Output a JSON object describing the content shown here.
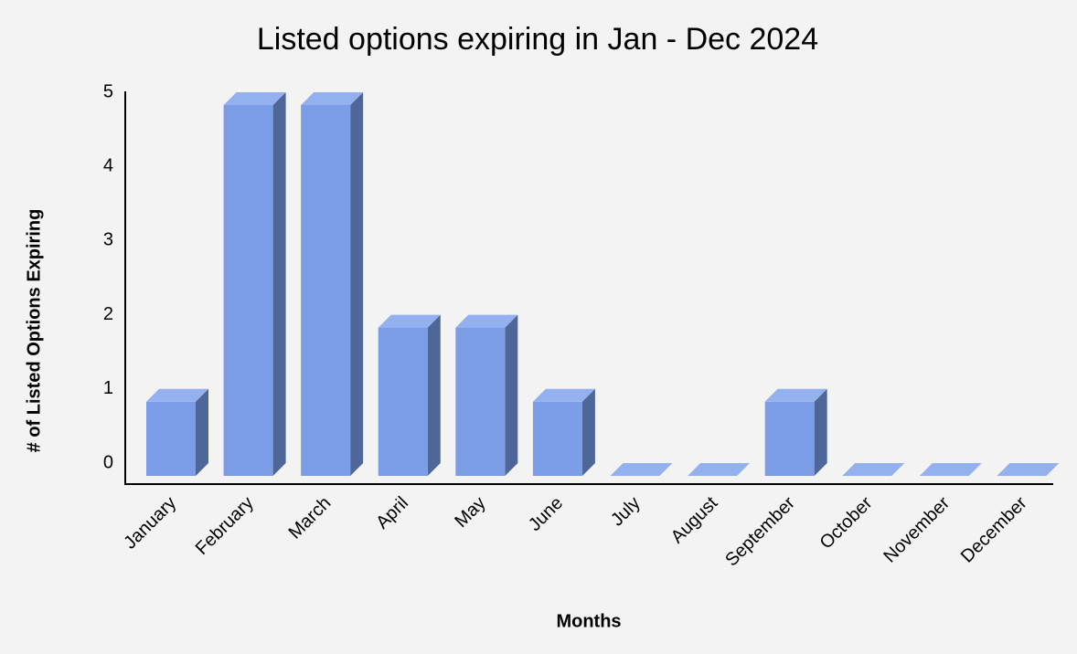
{
  "chart_data": {
    "type": "bar3d",
    "title": "Listed options expiring in Jan - Dec 2024",
    "x_label": "Months",
    "y_label": "# of Listed Options Expiring",
    "categories": [
      "January",
      "February",
      "March",
      "April",
      "May",
      "June",
      "July",
      "August",
      "September",
      "October",
      "November",
      "December"
    ],
    "values": [
      1,
      5,
      5,
      2,
      2,
      1,
      0,
      0,
      1,
      0,
      0,
      0
    ],
    "color": "#7b9de6",
    "ylim": [
      0,
      5
    ],
    "yticks": [
      0,
      1,
      2,
      3,
      4,
      5
    ],
    "grid": false
  }
}
